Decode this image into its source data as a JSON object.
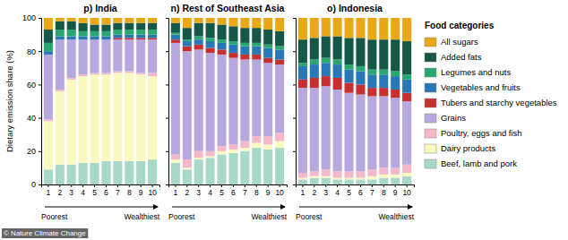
{
  "chart_data": [
    {
      "type": "bar",
      "stacked": true,
      "title": "p) India",
      "ylabel": "Dietary emission share (%)",
      "categories": [
        "1",
        "2",
        "3",
        "4",
        "5",
        "6",
        "7",
        "8",
        "9",
        "10"
      ],
      "ylim": [
        0,
        100
      ],
      "yticks": [
        0,
        20,
        40,
        60,
        80,
        100
      ],
      "annotations": [
        "Poorest",
        "Wealthiest",
        "Food categories",
        "© Nature Climate Change"
      ],
      "series": [
        {
          "name": "Beef, lamb and pork",
          "color": "#a8d8c8",
          "values": [
            9,
            12,
            12,
            13,
            13,
            14,
            14,
            14,
            14,
            15
          ]
        },
        {
          "name": "Dairy products",
          "color": "#fafac0",
          "values": [
            29,
            44,
            51,
            52,
            53,
            52,
            53,
            53,
            52,
            50
          ]
        },
        {
          "name": "Poultry, eggs and fish",
          "color": "#f5b8c8",
          "values": [
            1,
            1,
            1,
            1,
            1,
            1,
            1,
            1,
            1,
            2
          ]
        },
        {
          "name": "Grains",
          "color": "#b8a8e0",
          "values": [
            39,
            30,
            23,
            21,
            20,
            20,
            19,
            19,
            20,
            20
          ]
        },
        {
          "name": "Tubers and starchy vegetables",
          "color": "#c83030",
          "values": [
            0,
            0,
            0,
            0,
            0,
            0,
            1,
            1,
            1,
            1
          ]
        },
        {
          "name": "Vegetables and fruits",
          "color": "#2878b8",
          "values": [
            2,
            2,
            2,
            2,
            2,
            2,
            2,
            2,
            2,
            2
          ]
        },
        {
          "name": "Legumes and nuts",
          "color": "#28a870",
          "values": [
            5,
            4,
            4,
            3,
            3,
            3,
            3,
            3,
            3,
            3
          ]
        },
        {
          "name": "Added fats",
          "color": "#165848",
          "values": [
            8,
            5,
            5,
            5,
            4,
            4,
            4,
            4,
            4,
            4
          ]
        },
        {
          "name": "All sugars",
          "color": "#e8a818",
          "values": [
            7,
            2,
            2,
            3,
            4,
            4,
            3,
            3,
            3,
            3
          ]
        }
      ]
    },
    {
      "type": "bar",
      "stacked": true,
      "title": "n) Rest of Southeast Asia",
      "tick_labels": "x",
      "categories": [
        "1",
        "2",
        "3",
        "4",
        "5",
        "6",
        "7",
        "8",
        "9",
        "10"
      ],
      "ylim": [
        0,
        100
      ],
      "yticks": [
        0,
        20,
        40,
        60,
        80,
        100
      ],
      "annotations": [
        "Poorest",
        "Wealthiest"
      ],
      "series": [
        {
          "name": "Beef, lamb and pork",
          "color": "#a8d8c8",
          "values": [
            13,
            9,
            15,
            16,
            18,
            19,
            20,
            22,
            21,
            22
          ]
        },
        {
          "name": "Dairy products",
          "color": "#fafac0",
          "values": [
            2,
            1,
            1,
            1,
            2,
            2,
            2,
            3,
            3,
            4
          ]
        },
        {
          "name": "Poultry, eggs and fish",
          "color": "#f5b8c8",
          "values": [
            3,
            5,
            4,
            3,
            3,
            3,
            4,
            4,
            5,
            5
          ]
        },
        {
          "name": "Grains",
          "color": "#b8a8e0",
          "values": [
            67,
            65,
            61,
            59,
            55,
            52,
            49,
            46,
            44,
            41
          ]
        },
        {
          "name": "Tubers and starchy vegetables",
          "color": "#c83030",
          "values": [
            2,
            3,
            3,
            3,
            3,
            3,
            3,
            3,
            3,
            3
          ]
        },
        {
          "name": "Vegetables and fruits",
          "color": "#2878b8",
          "values": [
            3,
            3,
            3,
            4,
            4,
            5,
            5,
            5,
            6,
            6
          ]
        },
        {
          "name": "Legumes and nuts",
          "color": "#28a870",
          "values": [
            1,
            1,
            2,
            2,
            2,
            2,
            2,
            2,
            2,
            2
          ]
        },
        {
          "name": "Added fats",
          "color": "#165848",
          "values": [
            6,
            7,
            8,
            9,
            9,
            9,
            9,
            9,
            9,
            9
          ]
        },
        {
          "name": "All sugars",
          "color": "#e8a818",
          "values": [
            3,
            6,
            3,
            3,
            4,
            5,
            6,
            6,
            7,
            8
          ]
        }
      ]
    },
    {
      "type": "bar",
      "stacked": true,
      "title": "o) Indonesia",
      "tick_labels": "x",
      "categories": [
        "1",
        "2",
        "3",
        "4",
        "5",
        "6",
        "7",
        "8",
        "9",
        "10"
      ],
      "ylim": [
        0,
        100
      ],
      "yticks": [
        0,
        20,
        40,
        60,
        80,
        100
      ],
      "annotations": [
        "Poorest",
        "Wealthiest"
      ],
      "series": [
        {
          "name": "Beef, lamb and pork",
          "color": "#a8d8c8",
          "values": [
            3,
            4,
            4,
            3,
            3,
            3,
            3,
            4,
            4,
            5
          ]
        },
        {
          "name": "Dairy products",
          "color": "#fafac0",
          "values": [
            1,
            1,
            1,
            1,
            1,
            1,
            2,
            2,
            2,
            2
          ]
        },
        {
          "name": "Poultry, eggs and fish",
          "color": "#f5b8c8",
          "values": [
            3,
            3,
            4,
            4,
            4,
            4,
            4,
            4,
            4,
            5
          ]
        },
        {
          "name": "Grains",
          "color": "#b8a8e0",
          "values": [
            51,
            50,
            50,
            49,
            47,
            46,
            44,
            43,
            42,
            38
          ]
        },
        {
          "name": "Tubers and starchy vegetables",
          "color": "#c83030",
          "values": [
            5,
            6,
            6,
            7,
            6,
            6,
            5,
            5,
            5,
            5
          ]
        },
        {
          "name": "Vegetables and fruits",
          "color": "#2878b8",
          "values": [
            8,
            8,
            8,
            8,
            8,
            8,
            8,
            8,
            8,
            8
          ]
        },
        {
          "name": "Legumes and nuts",
          "color": "#28a870",
          "values": [
            2,
            3,
            3,
            3,
            3,
            3,
            3,
            3,
            3,
            3
          ]
        },
        {
          "name": "Added fats",
          "color": "#165848",
          "values": [
            14,
            13,
            13,
            14,
            16,
            17,
            18,
            18,
            19,
            20
          ]
        },
        {
          "name": "All sugars",
          "color": "#e8a818",
          "values": [
            13,
            12,
            11,
            11,
            12,
            12,
            13,
            13,
            13,
            14
          ]
        }
      ]
    }
  ]
}
